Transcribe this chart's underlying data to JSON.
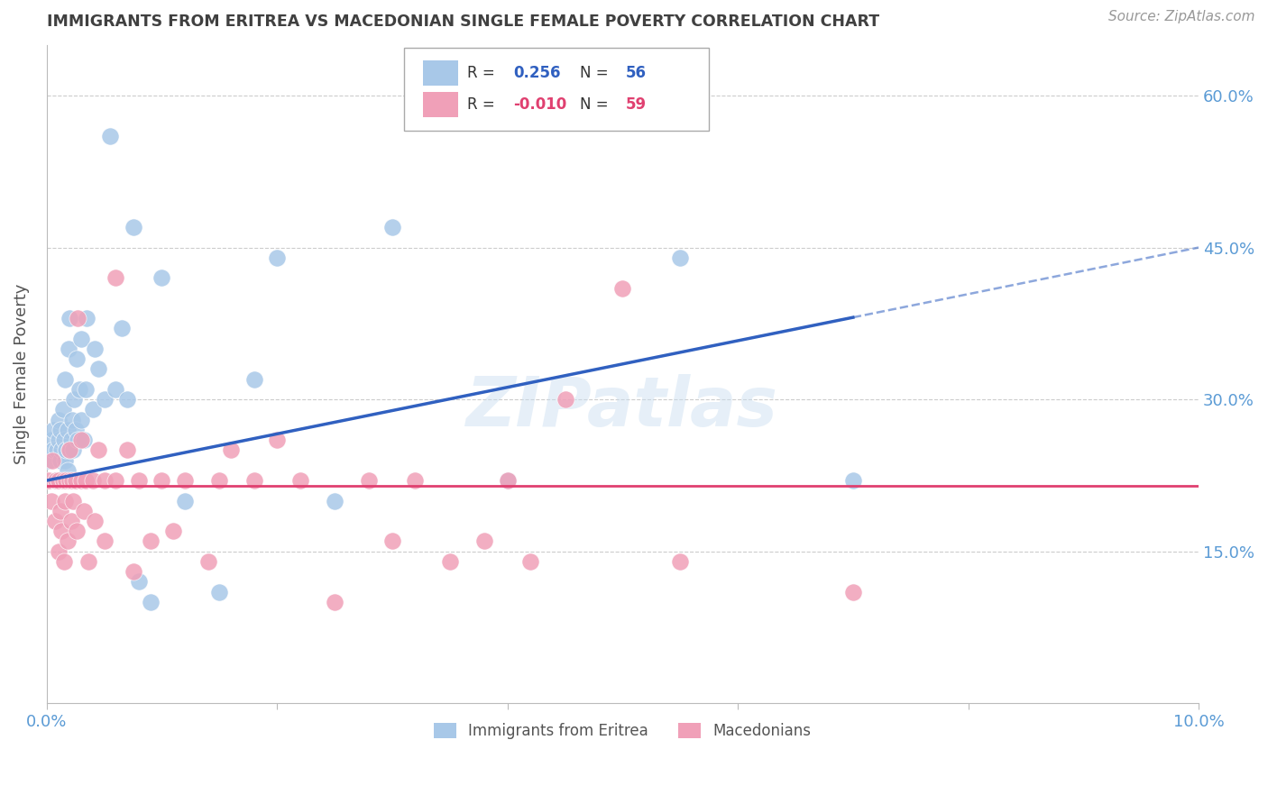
{
  "title": "IMMIGRANTS FROM ERITREA VS MACEDONIAN SINGLE FEMALE POVERTY CORRELATION CHART",
  "source": "Source: ZipAtlas.com",
  "ylabel": "Single Female Poverty",
  "legend_label1": "Immigrants from Eritrea",
  "legend_label2": "Macedonians",
  "r1": "0.256",
  "n1": "56",
  "r2": "-0.010",
  "n2": "59",
  "xmin": 0.0,
  "xmax": 0.1,
  "ymin": 0.0,
  "ymax": 0.65,
  "right_yticks": [
    0.15,
    0.3,
    0.45,
    0.6
  ],
  "right_yticklabels": [
    "15.0%",
    "30.0%",
    "45.0%",
    "60.0%"
  ],
  "color_blue": "#A8C8E8",
  "color_pink": "#F0A0B8",
  "color_blue_line": "#3060C0",
  "color_pink_line": "#E04070",
  "color_grid": "#CCCCCC",
  "color_axis_label": "#5B9BD5",
  "color_title": "#404040",
  "watermark": "ZIPatlas",
  "blue_scatter_x": [
    0.0002,
    0.0004,
    0.0006,
    0.0006,
    0.0008,
    0.0009,
    0.001,
    0.001,
    0.0012,
    0.0012,
    0.0013,
    0.0014,
    0.0014,
    0.0015,
    0.0016,
    0.0016,
    0.0017,
    0.0018,
    0.0018,
    0.0019,
    0.002,
    0.002,
    0.0021,
    0.0022,
    0.0023,
    0.0024,
    0.0025,
    0.0026,
    0.0027,
    0.0028,
    0.003,
    0.003,
    0.0032,
    0.0034,
    0.0035,
    0.004,
    0.0042,
    0.0045,
    0.005,
    0.0055,
    0.006,
    0.0065,
    0.007,
    0.0075,
    0.008,
    0.009,
    0.01,
    0.012,
    0.015,
    0.018,
    0.02,
    0.025,
    0.03,
    0.04,
    0.055,
    0.07
  ],
  "blue_scatter_y": [
    0.24,
    0.26,
    0.25,
    0.27,
    0.22,
    0.25,
    0.26,
    0.28,
    0.24,
    0.27,
    0.25,
    0.22,
    0.29,
    0.26,
    0.24,
    0.32,
    0.25,
    0.27,
    0.23,
    0.35,
    0.25,
    0.38,
    0.26,
    0.28,
    0.25,
    0.3,
    0.27,
    0.34,
    0.26,
    0.31,
    0.28,
    0.36,
    0.26,
    0.31,
    0.38,
    0.29,
    0.35,
    0.33,
    0.3,
    0.56,
    0.31,
    0.37,
    0.3,
    0.47,
    0.12,
    0.1,
    0.42,
    0.2,
    0.11,
    0.32,
    0.44,
    0.2,
    0.47,
    0.22,
    0.44,
    0.22
  ],
  "pink_scatter_x": [
    0.0002,
    0.0004,
    0.0005,
    0.0007,
    0.0008,
    0.001,
    0.001,
    0.0012,
    0.0013,
    0.0014,
    0.0015,
    0.0016,
    0.0017,
    0.0018,
    0.002,
    0.002,
    0.0021,
    0.0022,
    0.0023,
    0.0025,
    0.0026,
    0.0027,
    0.003,
    0.003,
    0.0032,
    0.0034,
    0.0036,
    0.004,
    0.0042,
    0.0045,
    0.005,
    0.005,
    0.006,
    0.006,
    0.007,
    0.0075,
    0.008,
    0.009,
    0.01,
    0.011,
    0.012,
    0.014,
    0.015,
    0.016,
    0.018,
    0.02,
    0.022,
    0.025,
    0.028,
    0.03,
    0.032,
    0.035,
    0.038,
    0.04,
    0.042,
    0.045,
    0.05,
    0.055,
    0.07
  ],
  "pink_scatter_y": [
    0.22,
    0.2,
    0.24,
    0.18,
    0.22,
    0.15,
    0.22,
    0.19,
    0.17,
    0.22,
    0.14,
    0.2,
    0.22,
    0.16,
    0.22,
    0.25,
    0.18,
    0.22,
    0.2,
    0.22,
    0.17,
    0.38,
    0.22,
    0.26,
    0.19,
    0.22,
    0.14,
    0.22,
    0.18,
    0.25,
    0.22,
    0.16,
    0.42,
    0.22,
    0.25,
    0.13,
    0.22,
    0.16,
    0.22,
    0.17,
    0.22,
    0.14,
    0.22,
    0.25,
    0.22,
    0.26,
    0.22,
    0.1,
    0.22,
    0.16,
    0.22,
    0.14,
    0.16,
    0.22,
    0.14,
    0.3,
    0.41,
    0.14,
    0.11
  ],
  "blue_line_x0": 0.0,
  "blue_line_y0": 0.22,
  "blue_line_x1": 0.1,
  "blue_line_y1": 0.45,
  "blue_solid_xend": 0.07,
  "pink_line_y": 0.215
}
